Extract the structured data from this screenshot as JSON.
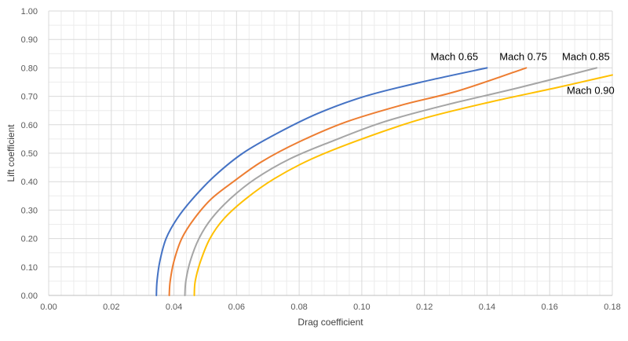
{
  "chart_data": {
    "type": "line",
    "title": "",
    "xlabel": "Drag coefficient",
    "ylabel": "Lift coefficient",
    "xlim": [
      0,
      0.18
    ],
    "ylim": [
      0,
      1.0
    ],
    "x_major_step": 0.02,
    "y_major_step": 0.1,
    "x_tick_labels": [
      "0.00",
      "0.02",
      "0.04",
      "0.06",
      "0.08",
      "0.10",
      "0.12",
      "0.14",
      "0.16",
      "0.18"
    ],
    "y_tick_labels": [
      "0.00",
      "0.10",
      "0.20",
      "0.30",
      "0.40",
      "0.50",
      "0.60",
      "0.70",
      "0.80",
      "0.90",
      "1.00"
    ],
    "grid": true,
    "legend": "inline labels at curve ends",
    "series": [
      {
        "name": "Mach 0.65",
        "color": "#4472C4",
        "x": [
          0.0344,
          0.0346,
          0.0355,
          0.0375,
          0.041,
          0.046,
          0.053,
          0.062,
          0.073,
          0.086,
          0.101,
          0.119,
          0.14
        ],
        "y": [
          0.0,
          0.05,
          0.12,
          0.2,
          0.27,
          0.34,
          0.42,
          0.5,
          0.57,
          0.64,
          0.7,
          0.75,
          0.8
        ]
      },
      {
        "name": "Mach 0.75",
        "color": "#ED7D31",
        "x": [
          0.0385,
          0.0388,
          0.04,
          0.0425,
          0.0465,
          0.052,
          0.059,
          0.068,
          0.08,
          0.095,
          0.113,
          0.131,
          0.1525
        ],
        "y": [
          0.0,
          0.05,
          0.12,
          0.2,
          0.27,
          0.34,
          0.4,
          0.47,
          0.54,
          0.61,
          0.67,
          0.72,
          0.8
        ]
      },
      {
        "name": "Mach 0.85",
        "color": "#A5A5A5",
        "x": [
          0.0435,
          0.0438,
          0.0452,
          0.048,
          0.052,
          0.058,
          0.066,
          0.077,
          0.09,
          0.107,
          0.127,
          0.15,
          0.175
        ],
        "y": [
          0.0,
          0.05,
          0.12,
          0.2,
          0.27,
          0.34,
          0.41,
          0.48,
          0.54,
          0.61,
          0.67,
          0.73,
          0.8
        ]
      },
      {
        "name": "Mach 0.90",
        "color": "#FFC000",
        "x": [
          0.0465,
          0.0468,
          0.0485,
          0.0515,
          0.056,
          0.063,
          0.072,
          0.084,
          0.1,
          0.119,
          0.141,
          0.162,
          0.18
        ],
        "y": [
          0.0,
          0.05,
          0.12,
          0.2,
          0.27,
          0.34,
          0.41,
          0.48,
          0.55,
          0.62,
          0.68,
          0.73,
          0.775
        ]
      }
    ]
  }
}
